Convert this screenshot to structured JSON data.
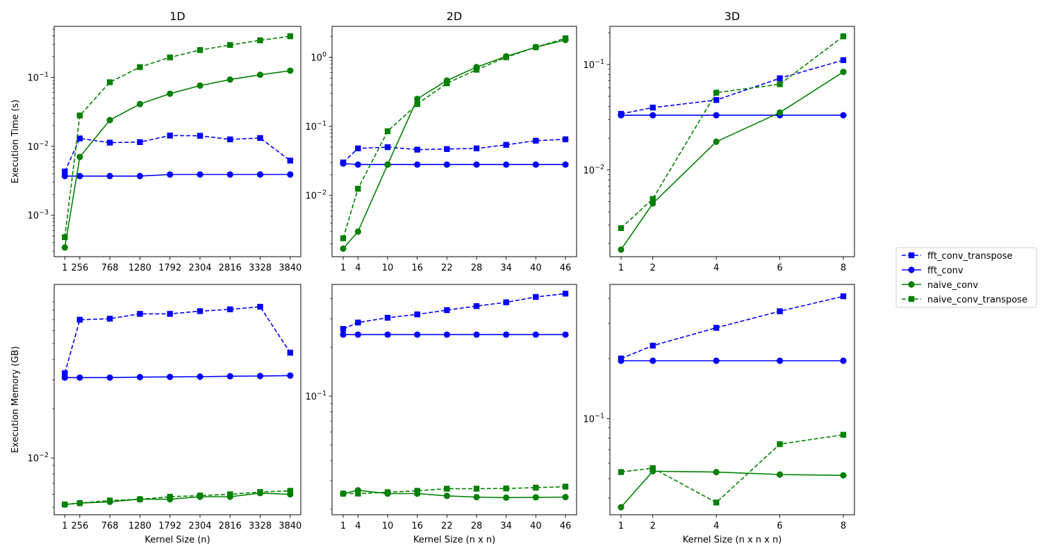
{
  "colors": {
    "fft": "#0000ff",
    "naive": "#008000",
    "band": "#90ee90"
  },
  "legend": [
    {
      "name": "fft_conv_transpose",
      "color": "#0000ff",
      "dash": true,
      "marker": "square"
    },
    {
      "name": "fft_conv",
      "color": "#0000ff",
      "dash": false,
      "marker": "circle"
    },
    {
      "name": "naive_conv",
      "color": "#008000",
      "dash": false,
      "marker": "circle"
    },
    {
      "name": "naive_conv_transpose",
      "color": "#008000",
      "dash": true,
      "marker": "square"
    }
  ],
  "chart_data": [
    {
      "id": "time-1d",
      "type": "line",
      "title": "1D",
      "xlabel": "",
      "ylabel": "Execution Time (s)",
      "yscale": "log",
      "ylim": [
        0.00025,
        0.55
      ],
      "xlim": [
        -180,
        4020
      ],
      "x": [
        1,
        256,
        768,
        1280,
        1792,
        2304,
        2816,
        3328,
        3840
      ],
      "xticks": [
        1,
        256,
        768,
        1280,
        1792,
        2304,
        2816,
        3328,
        3840
      ],
      "xticklabels": [
        "1",
        "256",
        "768",
        "1280",
        "1792",
        "2304",
        "2816",
        "3328",
        "3840"
      ],
      "yticks": [
        {
          "v": 0.001,
          "base": "10",
          "exp": "−3"
        },
        {
          "v": 0.01,
          "base": "10",
          "exp": "−2"
        },
        {
          "v": 0.1,
          "base": "10",
          "exp": "−1"
        }
      ],
      "series": [
        {
          "name": "fft_conv_transpose",
          "values": [
            0.0043,
            0.013,
            0.0113,
            0.0115,
            0.0143,
            0.0142,
            0.0126,
            0.0132,
            0.0062
          ]
        },
        {
          "name": "fft_conv",
          "values": [
            0.0037,
            0.0037,
            0.0037,
            0.0037,
            0.0039,
            0.0039,
            0.0039,
            0.0039,
            0.0039
          ]
        },
        {
          "name": "naive_conv",
          "values": [
            0.00034,
            0.007,
            0.024,
            0.041,
            0.058,
            0.076,
            0.093,
            0.109,
            0.125
          ]
        },
        {
          "name": "naive_conv_transpose",
          "values": [
            0.00048,
            0.028,
            0.085,
            0.141,
            0.195,
            0.249,
            0.295,
            0.345,
            0.395
          ]
        }
      ]
    },
    {
      "id": "time-2d",
      "type": "line",
      "title": "2D",
      "xlabel": "",
      "ylabel": "",
      "yscale": "log",
      "ylim": [
        0.0013,
        2.8
      ],
      "xlim": [
        -1.25,
        48.25
      ],
      "x": [
        1,
        4,
        10,
        16,
        22,
        28,
        34,
        40,
        46
      ],
      "xticks": [
        1,
        4,
        10,
        16,
        22,
        28,
        34,
        40,
        46
      ],
      "xticklabels": [
        "1",
        "4",
        "10",
        "16",
        "22",
        "28",
        "34",
        "40",
        "46"
      ],
      "yticks": [
        {
          "v": 0.01,
          "base": "10",
          "exp": "−2"
        },
        {
          "v": 0.1,
          "base": "10",
          "exp": "−1"
        },
        {
          "v": 1,
          "base": "10",
          "exp": "0"
        }
      ],
      "series": [
        {
          "name": "fft_conv_transpose",
          "values": [
            0.03,
            0.048,
            0.05,
            0.046,
            0.047,
            0.048,
            0.054,
            0.062,
            0.065
          ]
        },
        {
          "name": "fft_conv",
          "values": [
            0.029,
            0.028,
            0.028,
            0.028,
            0.028,
            0.028,
            0.028,
            0.028,
            0.028
          ]
        },
        {
          "name": "naive_conv",
          "values": [
            0.0017,
            0.003,
            0.028,
            0.25,
            0.46,
            0.72,
            1.03,
            1.4,
            1.78
          ]
        },
        {
          "name": "naive_conv_transpose",
          "values": [
            0.0024,
            0.0125,
            0.085,
            0.21,
            0.42,
            0.66,
            1.0,
            1.4,
            1.88
          ]
        }
      ]
    },
    {
      "id": "time-3d",
      "type": "line",
      "title": "3D",
      "xlabel": "",
      "ylabel": "",
      "yscale": "log",
      "ylim": [
        0.0015,
        0.23
      ],
      "xlim": [
        0.65,
        8.35
      ],
      "x": [
        1,
        2,
        4,
        6,
        8
      ],
      "xticks": [
        1,
        2,
        4,
        6,
        8
      ],
      "xticklabels": [
        "1",
        "2",
        "4",
        "6",
        "8"
      ],
      "yticks": [
        {
          "v": 0.01,
          "base": "10",
          "exp": "−2"
        },
        {
          "v": 0.1,
          "base": "10",
          "exp": "−1"
        }
      ],
      "series": [
        {
          "name": "fft_conv_transpose",
          "values": [
            0.034,
            0.039,
            0.046,
            0.074,
            0.11
          ]
        },
        {
          "name": "fft_conv",
          "values": [
            0.033,
            0.033,
            0.033,
            0.033,
            0.033
          ]
        },
        {
          "name": "naive_conv",
          "values": [
            0.00175,
            0.0048,
            0.0185,
            0.035,
            0.085
          ]
        },
        {
          "name": "naive_conv_transpose",
          "values": [
            0.0028,
            0.0053,
            0.054,
            0.065,
            0.185
          ]
        }
      ]
    },
    {
      "id": "mem-1d",
      "type": "line",
      "title": "",
      "xlabel": "Kernel Size (n)",
      "ylabel": "Execution Memory (GB)",
      "yscale": "log",
      "ylim": [
        0.0045,
        0.115
      ],
      "xlim": [
        -180,
        4020
      ],
      "x": [
        1,
        256,
        768,
        1280,
        1792,
        2304,
        2816,
        3328,
        3840
      ],
      "xticks": [
        1,
        256,
        768,
        1280,
        1792,
        2304,
        2816,
        3328,
        3840
      ],
      "xticklabels": [
        "1",
        "256",
        "768",
        "1280",
        "1792",
        "2304",
        "2816",
        "3328",
        "3840"
      ],
      "yticks": [
        {
          "v": 0.01,
          "base": "10",
          "exp": "−2"
        }
      ],
      "series": [
        {
          "name": "fft_conv_transpose",
          "values": [
            0.033,
            0.07,
            0.071,
            0.076,
            0.076,
            0.079,
            0.081,
            0.084,
            0.044
          ]
        },
        {
          "name": "fft_conv",
          "values": [
            0.031,
            0.031,
            0.031,
            0.0312,
            0.0313,
            0.0314,
            0.0316,
            0.0317,
            0.0319
          ]
        },
        {
          "name": "naive_conv",
          "values": [
            0.0052,
            0.0053,
            0.0054,
            0.0056,
            0.0056,
            0.0058,
            0.0058,
            0.0061,
            0.006
          ]
        },
        {
          "name": "naive_conv_transpose",
          "values": [
            0.0052,
            0.0053,
            0.0055,
            0.0056,
            0.0058,
            0.0059,
            0.006,
            0.0062,
            0.0063
          ]
        }
      ]
    },
    {
      "id": "mem-2d",
      "type": "line",
      "title": "",
      "xlabel": "Kernel Size (n x n)",
      "ylabel": "",
      "yscale": "log",
      "ylim": [
        0.0185,
        0.49
      ],
      "xlim": [
        -1.25,
        48.25
      ],
      "x": [
        1,
        4,
        10,
        16,
        22,
        28,
        34,
        40,
        46
      ],
      "xticks": [
        1,
        4,
        10,
        16,
        22,
        28,
        34,
        40,
        46
      ],
      "xticklabels": [
        "1",
        "4",
        "10",
        "16",
        "22",
        "28",
        "34",
        "40",
        "46"
      ],
      "yticks": [
        {
          "v": 0.1,
          "base": "10",
          "exp": "−1"
        }
      ],
      "series": [
        {
          "name": "fft_conv_transpose",
          "values": [
            0.26,
            0.285,
            0.305,
            0.32,
            0.34,
            0.36,
            0.38,
            0.41,
            0.43
          ]
        },
        {
          "name": "fft_conv",
          "values": [
            0.24,
            0.24,
            0.24,
            0.24,
            0.24,
            0.24,
            0.24,
            0.24,
            0.24
          ]
        },
        {
          "name": "naive_conv",
          "values": [
            0.025,
            0.0262,
            0.025,
            0.025,
            0.0242,
            0.0238,
            0.0236,
            0.0237,
            0.0238
          ]
        },
        {
          "name": "naive_conv_transpose",
          "values": [
            0.025,
            0.025,
            0.0255,
            0.026,
            0.0268,
            0.0268,
            0.0269,
            0.0272,
            0.0276
          ]
        }
      ]
    },
    {
      "id": "mem-3d",
      "type": "line",
      "title": "",
      "xlabel": "Kernel Size (n x n x n)",
      "ylabel": "",
      "yscale": "log",
      "ylim": [
        0.033,
        0.47
      ],
      "xlim": [
        0.65,
        8.35
      ],
      "x": [
        1,
        2,
        4,
        6,
        8
      ],
      "xticks": [
        1,
        2,
        4,
        6,
        8
      ],
      "xticklabels": [
        "1",
        "2",
        "4",
        "6",
        "8"
      ],
      "yticks": [
        {
          "v": 0.1,
          "base": "10",
          "exp": "−1"
        }
      ],
      "series": [
        {
          "name": "fft_conv_transpose",
          "values": [
            0.2,
            0.232,
            0.285,
            0.345,
            0.41
          ]
        },
        {
          "name": "fft_conv",
          "values": [
            0.195,
            0.195,
            0.195,
            0.195,
            0.195
          ]
        },
        {
          "name": "naive_conv",
          "values": [
            0.036,
            0.0545,
            0.054,
            0.0525,
            0.052
          ]
        },
        {
          "name": "naive_conv_transpose",
          "values": [
            0.054,
            0.0565,
            0.038,
            0.0745,
            0.083
          ]
        }
      ]
    }
  ]
}
